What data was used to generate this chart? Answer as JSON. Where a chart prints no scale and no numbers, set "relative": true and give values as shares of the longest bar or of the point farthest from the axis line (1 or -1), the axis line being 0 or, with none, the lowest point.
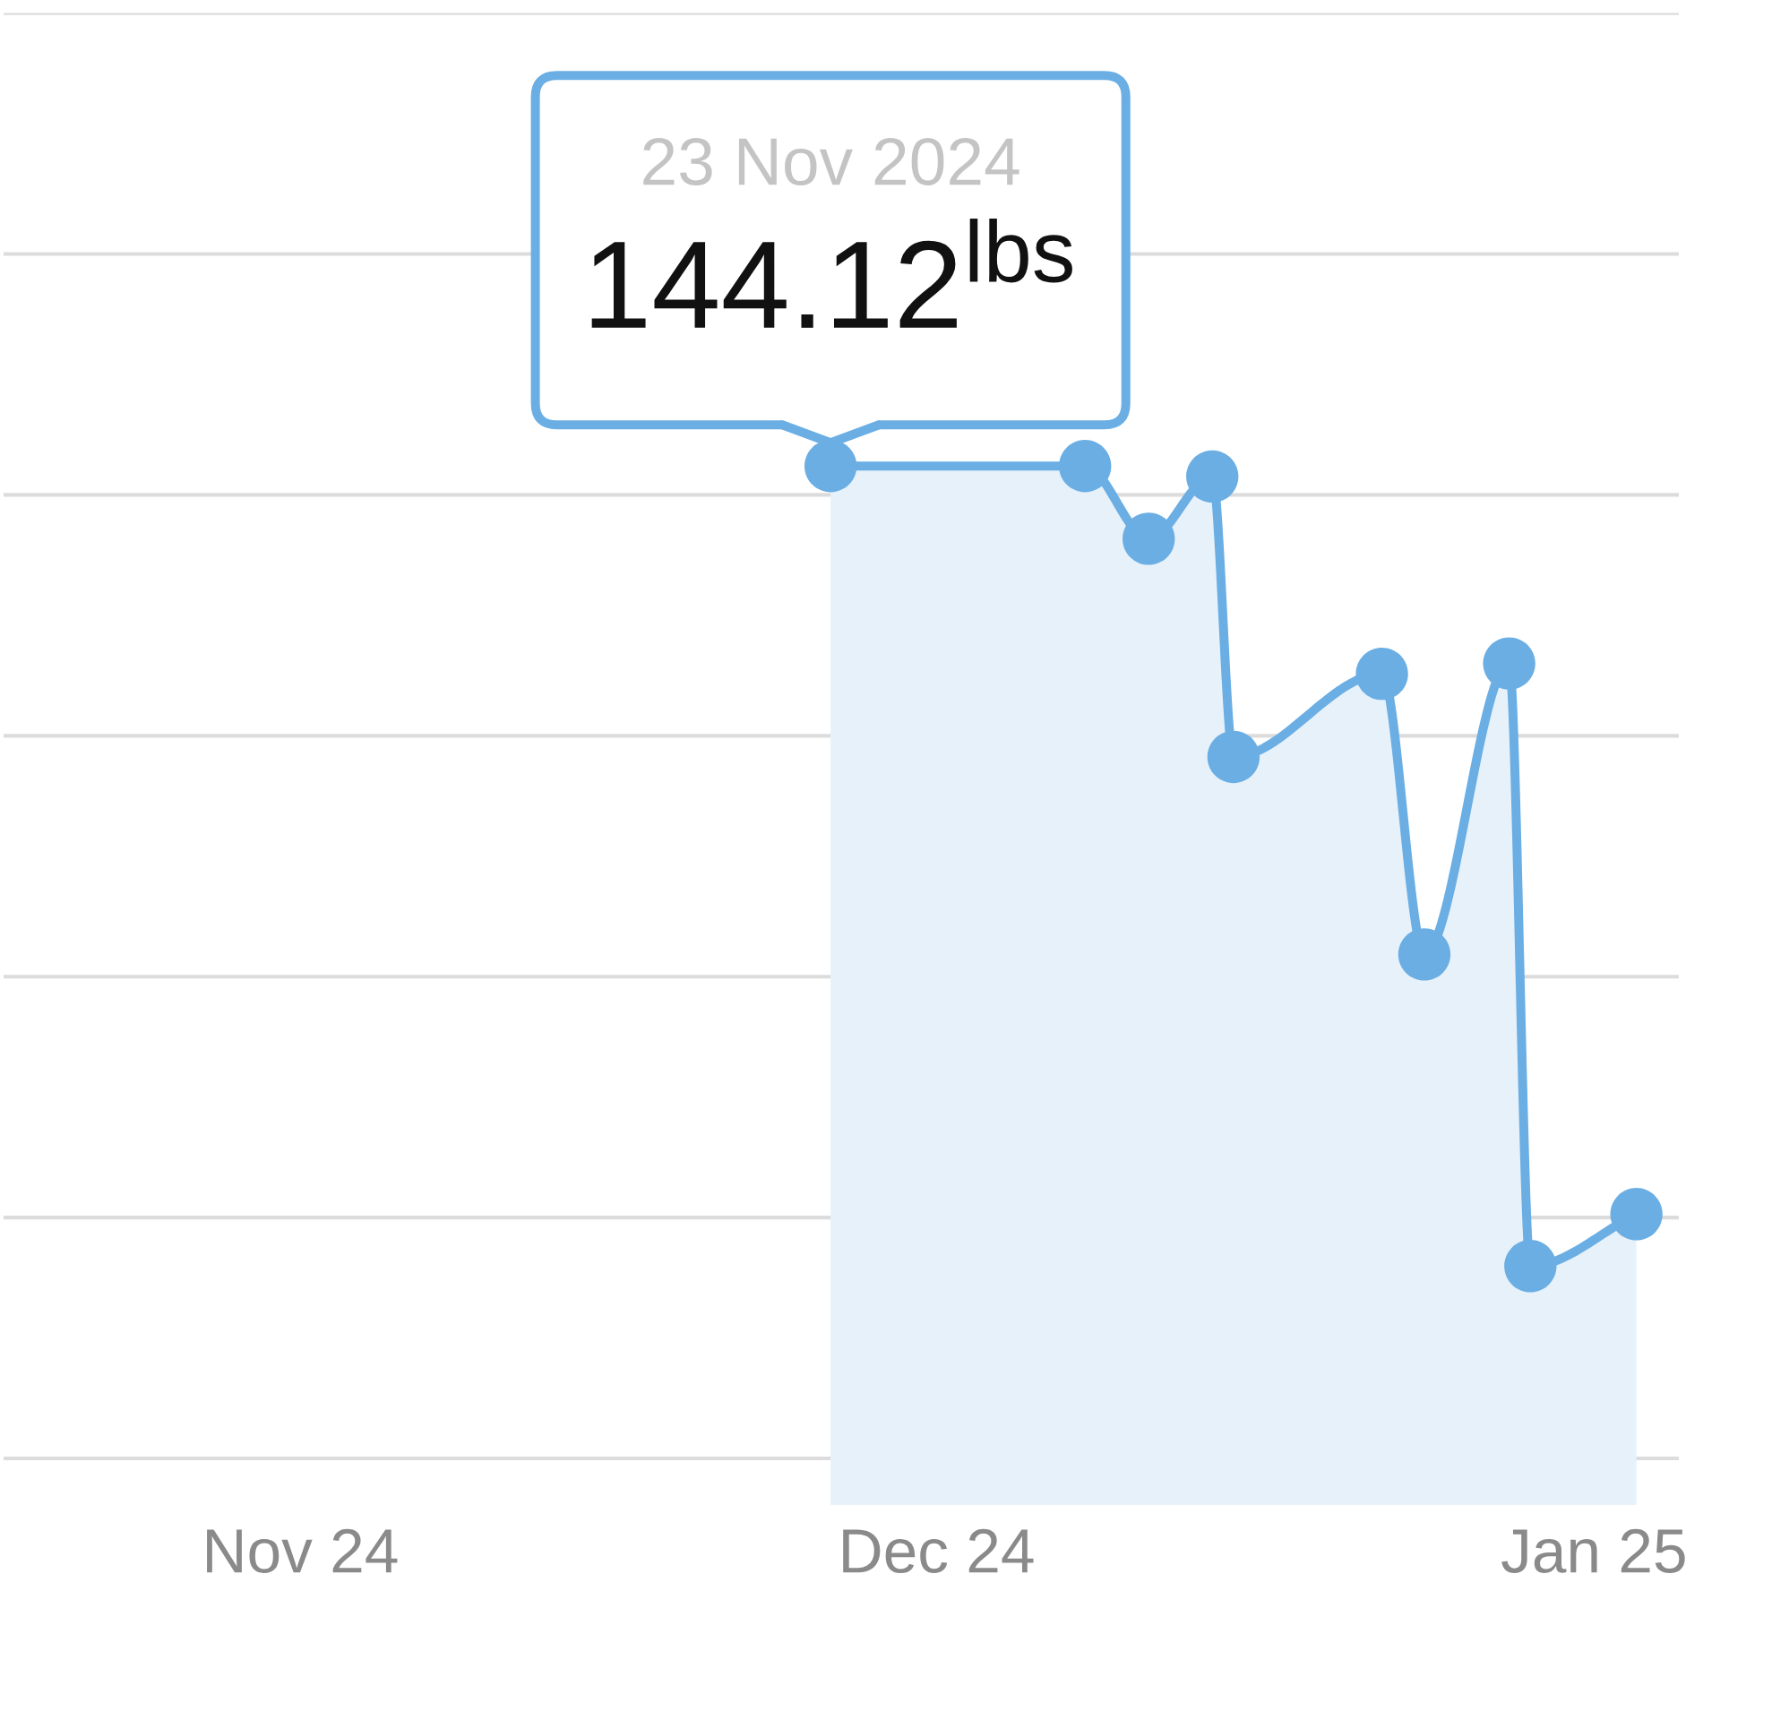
{
  "chart_data": {
    "type": "area",
    "relative": true,
    "x": [
      "2024-11-26",
      "2024-12-08",
      "2024-12-11",
      "2024-12-14",
      "2024-12-15",
      "2024-12-22",
      "2024-12-24",
      "2024-12-28",
      "2024-12-29",
      "2025-01-03"
    ],
    "values": [
      1,
      1,
      0.93,
      0.99,
      0.72,
      0.8,
      0.53,
      0.81,
      0.23,
      0.28
    ],
    "color": "#6aaee4",
    "marker": "circle",
    "xlim": [
      "2024-10-18",
      "2025-01-05"
    ],
    "xticks": [
      {
        "value": "2024-11-01",
        "label": "Nov 24"
      },
      {
        "value": "2024-12-01",
        "label": "Dec 24"
      },
      {
        "value": "2025-01-01",
        "label": "Jan 25"
      }
    ],
    "grid": "y",
    "tick_labels": "x",
    "annotations": [
      "23 Nov 2024",
      {
        "text": "144.12$^{lbs}$",
        "x": "2024-11-26",
        "y": 1
      }
    ]
  }
}
